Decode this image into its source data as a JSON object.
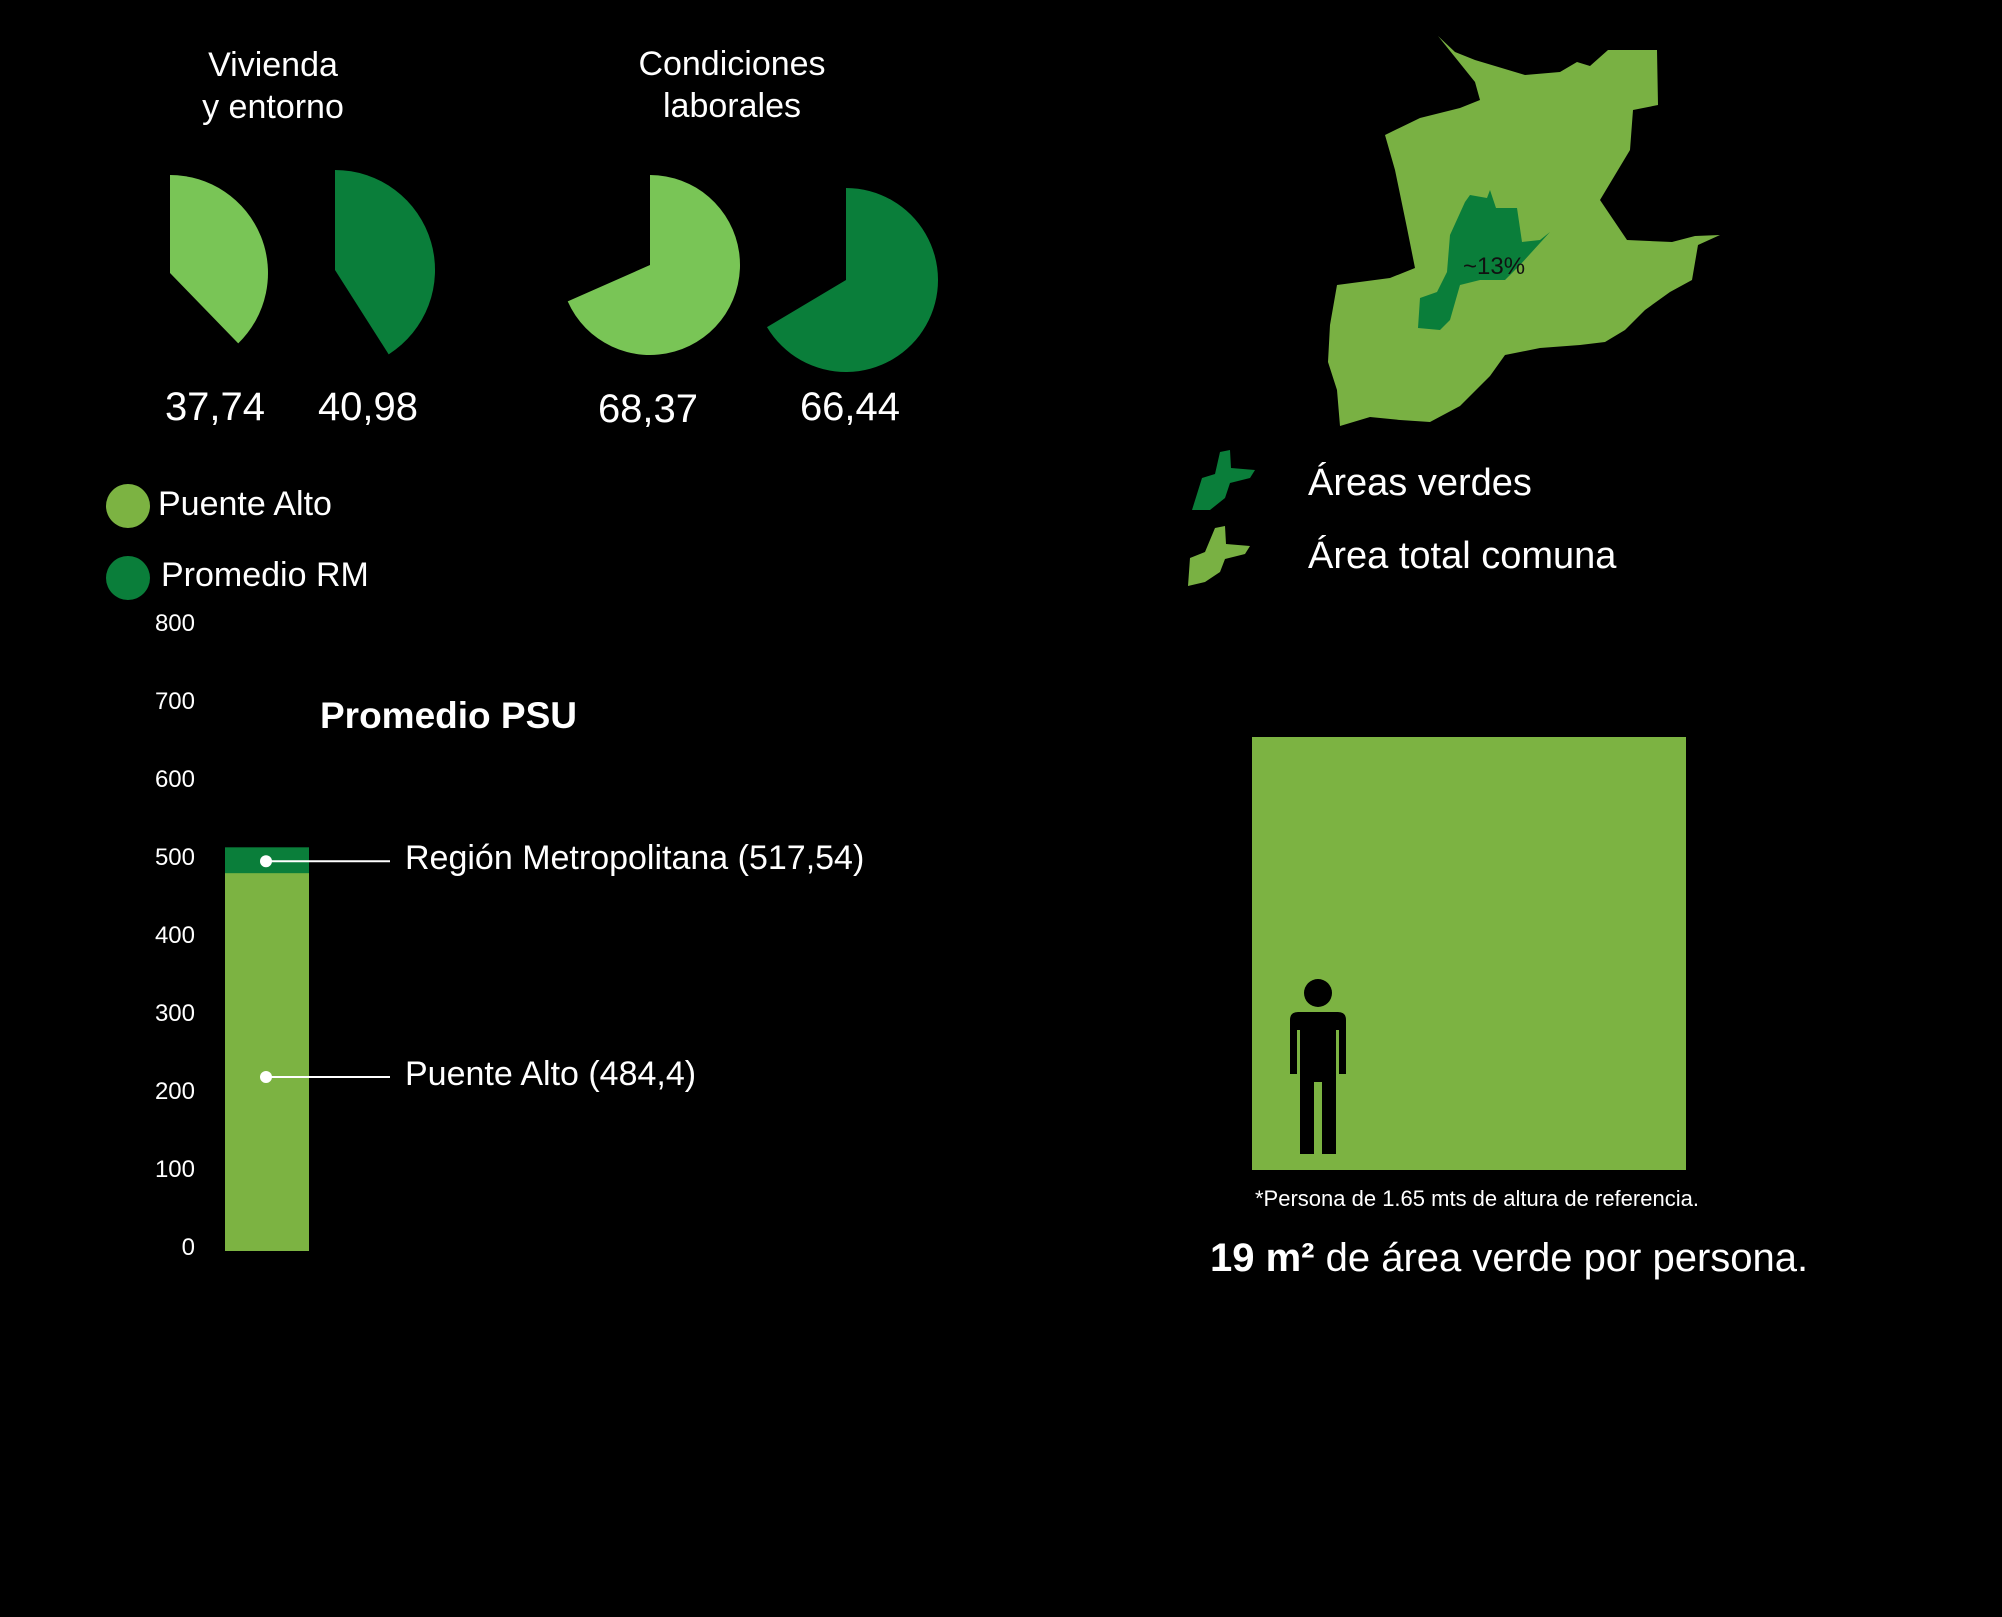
{
  "colors": {
    "background": "#000000",
    "puente_alto": "#7cb342",
    "promedio_rm": "#0a7e3a",
    "pie_light": "#79c556",
    "map_light": "#79b143",
    "map_dark": "#0a7e3a"
  },
  "pies": {
    "groups": [
      {
        "title": "Vivienda\ny entorno"
      },
      {
        "title": "Condiciones\nlaborales"
      }
    ]
  },
  "legend": {
    "items": [
      {
        "label": "Puente Alto",
        "color": "#7cb342"
      },
      {
        "label": "Promedio RM",
        "color": "#0a7e3a"
      }
    ]
  },
  "map": {
    "percent_label": "~13%",
    "legend": [
      {
        "label": "Áreas verdes",
        "icon": "green-area-icon"
      },
      {
        "label": "Área total comuna",
        "icon": "commune-area-icon"
      }
    ]
  },
  "green_area": {
    "footnote": "*Persona de 1.65 mts de altura de referencia.",
    "value_bold": "19 m²",
    "value_rest": " de área verde por persona.",
    "person_icon": "person-icon"
  },
  "chart_data": [
    {
      "type": "pie",
      "title": "Vivienda\ny entorno",
      "series": [
        {
          "name": "Puente Alto",
          "value": 37.74,
          "label": "37,74",
          "color": "#79c556"
        },
        {
          "name": "Promedio RM",
          "value": 40.98,
          "label": "40,98",
          "color": "#0a7e3a"
        }
      ],
      "max": 100
    },
    {
      "type": "pie",
      "title": "Condiciones\nlaborales",
      "series": [
        {
          "name": "Puente Alto",
          "value": 68.37,
          "label": "68,37",
          "color": "#79c556"
        },
        {
          "name": "Promedio RM",
          "value": 66.44,
          "label": "66,44",
          "color": "#0a7e3a"
        }
      ],
      "max": 100
    },
    {
      "type": "bar",
      "title": "Promedio PSU",
      "ylim": [
        0,
        800
      ],
      "yticks": [
        "0",
        "100",
        "200",
        "300",
        "400",
        "500",
        "600",
        "700",
        "800"
      ],
      "series": [
        {
          "name": "Región Metropolitana",
          "value": 517.54,
          "label": "Región Metropolitana (517,54)",
          "color": "#0a7e3a"
        },
        {
          "name": "Puente Alto",
          "value": 484.4,
          "label": "Puente Alto (484,4)",
          "color": "#7cb342"
        }
      ]
    }
  ]
}
